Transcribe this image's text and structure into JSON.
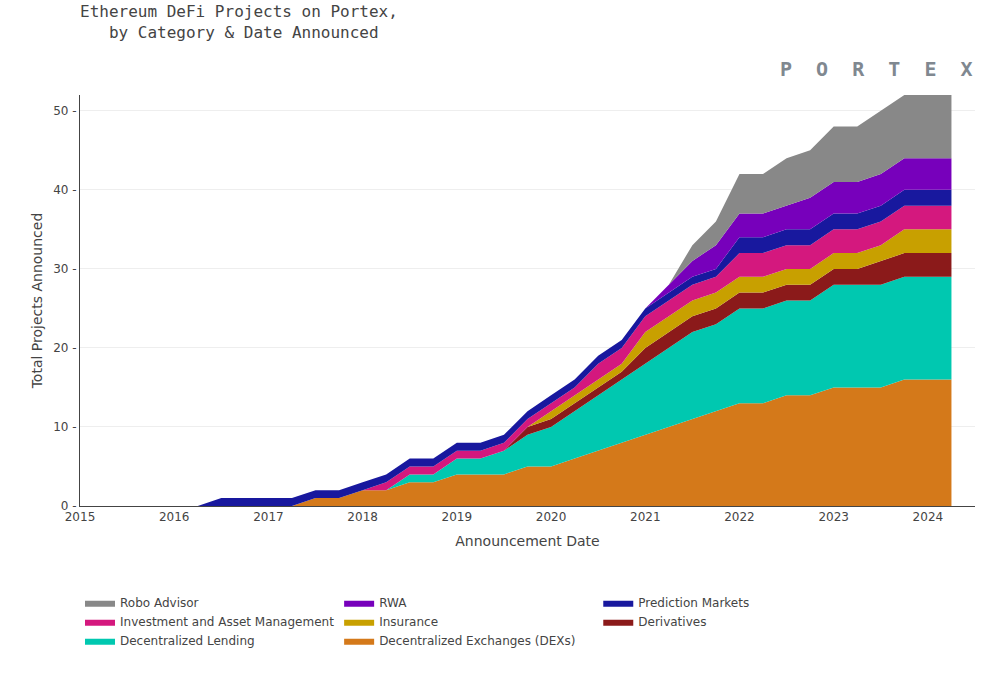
{
  "chart_data": {
    "type": "area",
    "stacked": true,
    "title": "Ethereum DeFi Projects on Portex,\n   by Category & Date Announced",
    "xlabel": "Announcement Date",
    "ylabel": "Total Projects Announced",
    "xlim": [
      2015,
      2024.5
    ],
    "ylim": [
      0,
      52
    ],
    "xticks": [
      2015,
      2016,
      2017,
      2018,
      2019,
      2020,
      2021,
      2022,
      2023,
      2024
    ],
    "yticks": [
      {
        "value": 0,
        "label": "0 -"
      },
      {
        "value": 10,
        "label": "10 -"
      },
      {
        "value": 20,
        "label": "20 -"
      },
      {
        "value": 30,
        "label": "30 -"
      },
      {
        "value": 40,
        "label": "40 -"
      },
      {
        "value": 50,
        "label": "50 -"
      }
    ],
    "grid": true,
    "legend": "bottom",
    "annotations": [
      {
        "text": "P  O  R  T  E  X"
      }
    ],
    "x": [
      2015.0,
      2015.25,
      2015.5,
      2015.75,
      2016.0,
      2016.25,
      2016.5,
      2016.75,
      2017.0,
      2017.25,
      2017.5,
      2017.75,
      2018.0,
      2018.25,
      2018.5,
      2018.75,
      2019.0,
      2019.25,
      2019.5,
      2019.75,
      2020.0,
      2020.25,
      2020.5,
      2020.75,
      2021.0,
      2021.25,
      2021.5,
      2021.75,
      2022.0,
      2022.25,
      2022.5,
      2022.75,
      2023.0,
      2023.25,
      2023.5,
      2023.75,
      2024.0,
      2024.25
    ],
    "series": [
      {
        "name": "Decentralized Exchanges (DEXs)",
        "color": "#d4791a",
        "values": [
          0,
          0,
          0,
          0,
          0,
          0,
          0,
          0,
          0,
          0,
          1,
          1,
          2,
          2,
          3,
          3,
          4,
          4,
          4,
          5,
          5,
          6,
          7,
          8,
          9,
          10,
          11,
          12,
          13,
          13,
          14,
          14,
          15,
          15,
          15,
          16,
          16,
          16
        ]
      },
      {
        "name": "Decentralized Lending",
        "color": "#00c8b0",
        "values": [
          0,
          0,
          0,
          0,
          0,
          0,
          0,
          0,
          0,
          0,
          0,
          0,
          0,
          0,
          1,
          1,
          2,
          2,
          3,
          4,
          5,
          6,
          7,
          8,
          9,
          10,
          11,
          11,
          12,
          12,
          12,
          12,
          13,
          13,
          13,
          13,
          13,
          13
        ]
      },
      {
        "name": "Derivatives",
        "color": "#8b1a1a",
        "values": [
          0,
          0,
          0,
          0,
          0,
          0,
          0,
          0,
          0,
          0,
          0,
          0,
          0,
          0,
          0,
          0,
          0,
          0,
          0,
          1,
          1,
          1,
          1,
          1,
          2,
          2,
          2,
          2,
          2,
          2,
          2,
          2,
          2,
          2,
          3,
          3,
          3,
          3
        ]
      },
      {
        "name": "Insurance",
        "color": "#c8a000",
        "values": [
          0,
          0,
          0,
          0,
          0,
          0,
          0,
          0,
          0,
          0,
          0,
          0,
          0,
          0,
          0,
          0,
          0,
          0,
          0,
          0,
          1,
          1,
          1,
          1,
          2,
          2,
          2,
          2,
          2,
          2,
          2,
          2,
          2,
          2,
          2,
          3,
          3,
          3
        ]
      },
      {
        "name": "Investment and Asset Management",
        "color": "#d4187e",
        "values": [
          0,
          0,
          0,
          0,
          0,
          0,
          0,
          0,
          0,
          0,
          0,
          0,
          0,
          1,
          1,
          1,
          1,
          1,
          1,
          1,
          1,
          1,
          2,
          2,
          2,
          2,
          2,
          2,
          3,
          3,
          3,
          3,
          3,
          3,
          3,
          3,
          3,
          3
        ]
      },
      {
        "name": "Prediction Markets",
        "color": "#18189e",
        "values": [
          0,
          0,
          0,
          0,
          0,
          0,
          1,
          1,
          1,
          1,
          1,
          1,
          1,
          1,
          1,
          1,
          1,
          1,
          1,
          1,
          1,
          1,
          1,
          1,
          1,
          1,
          1,
          1,
          2,
          2,
          2,
          2,
          2,
          2,
          2,
          2,
          2,
          2
        ]
      },
      {
        "name": "RWA",
        "color": "#7700bb",
        "values": [
          0,
          0,
          0,
          0,
          0,
          0,
          0,
          0,
          0,
          0,
          0,
          0,
          0,
          0,
          0,
          0,
          0,
          0,
          0,
          0,
          0,
          0,
          0,
          0,
          0,
          1,
          2,
          3,
          3,
          3,
          3,
          4,
          4,
          4,
          4,
          4,
          4,
          4
        ]
      },
      {
        "name": "Robo Advisor",
        "color": "#888888",
        "values": [
          0,
          0,
          0,
          0,
          0,
          0,
          0,
          0,
          0,
          0,
          0,
          0,
          0,
          0,
          0,
          0,
          0,
          0,
          0,
          0,
          0,
          0,
          0,
          0,
          0,
          0,
          2,
          3,
          5,
          5,
          6,
          6,
          7,
          7,
          8,
          8,
          8,
          8
        ]
      }
    ]
  }
}
